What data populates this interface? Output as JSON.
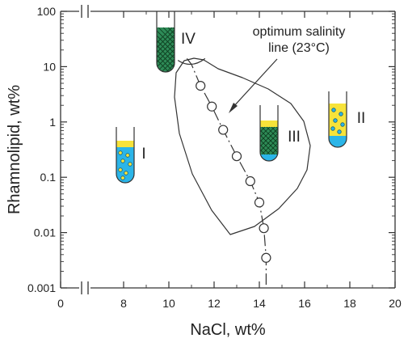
{
  "chart_data": {
    "type": "scatter",
    "xlabel": "NaCl, wt%",
    "ylabel": "Rhamnolipid, wt%",
    "yscale": "log",
    "ylim": [
      0.001,
      100
    ],
    "xlim_display": [
      0,
      20
    ],
    "axis_break": "between 0 and 6 on x axis",
    "x_ticks": [
      "0",
      "8",
      "10",
      "12",
      "14",
      "16",
      "18",
      "20"
    ],
    "y_ticks": [
      "0.001",
      "0.01",
      "0.1",
      "1",
      "10",
      "100"
    ],
    "series": [
      {
        "name": "optimum salinity line (23°C)",
        "x": [
          11.0,
          11.4,
          11.9,
          12.4,
          13.0,
          13.6,
          14.0,
          14.2,
          14.3
        ],
        "y": [
          11,
          4.5,
          1.9,
          0.72,
          0.24,
          0.085,
          0.035,
          0.012,
          0.0035
        ]
      }
    ],
    "annotations": {
      "optimum_line_text_1": "optimum salinity",
      "optimum_line_text_2": "line (23°C)"
    },
    "phase_labels": [
      {
        "label": "I",
        "x": 7.6,
        "y": 0.2,
        "type": "WinsorI"
      },
      {
        "label": "II",
        "x": 17.1,
        "y": 1.05,
        "type": "WinsorII"
      },
      {
        "label": "III",
        "x": 13.8,
        "y": 0.55,
        "type": "WinsorIII"
      },
      {
        "label": "IV",
        "x": 9.5,
        "y": 20,
        "type": "WinsorIV"
      }
    ],
    "colors": {
      "water_blue": "#2bb5e8",
      "oil_yellow": "#f7e33a",
      "microemulsion_green": "#2e8b57",
      "droplet_fill": "#f7e33a",
      "droplet_stroke": "#1a5f7a",
      "axis": "#333333"
    }
  }
}
